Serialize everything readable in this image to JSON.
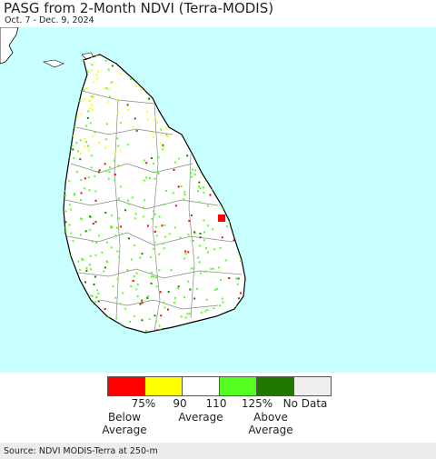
{
  "header": {
    "title": "PASG from 2-Month NDVI (Terra-MODIS)",
    "date_range": "Oct. 7 - Dec. 9, 2024"
  },
  "map": {
    "region": "Sri Lanka",
    "colors": {
      "ocean": "#c8ffff",
      "land": "#ffffff",
      "boundary": "#777777",
      "coast": "#000000"
    }
  },
  "legend": {
    "swatches": [
      {
        "color": "#ff0000"
      },
      {
        "color": "#ffff00"
      },
      {
        "color": "#ffffff"
      },
      {
        "color": "#55ff22"
      },
      {
        "color": "#227700"
      },
      {
        "color": "#f0eef0"
      }
    ],
    "ticks": [
      "75%",
      "90",
      "110",
      "125%",
      "No Data"
    ],
    "categories": {
      "below": "Below\nAverage",
      "average": "Average",
      "above": "Above\nAverage"
    }
  },
  "footer": {
    "source": "Source: NDVI MODIS-Terra at 250-m"
  }
}
